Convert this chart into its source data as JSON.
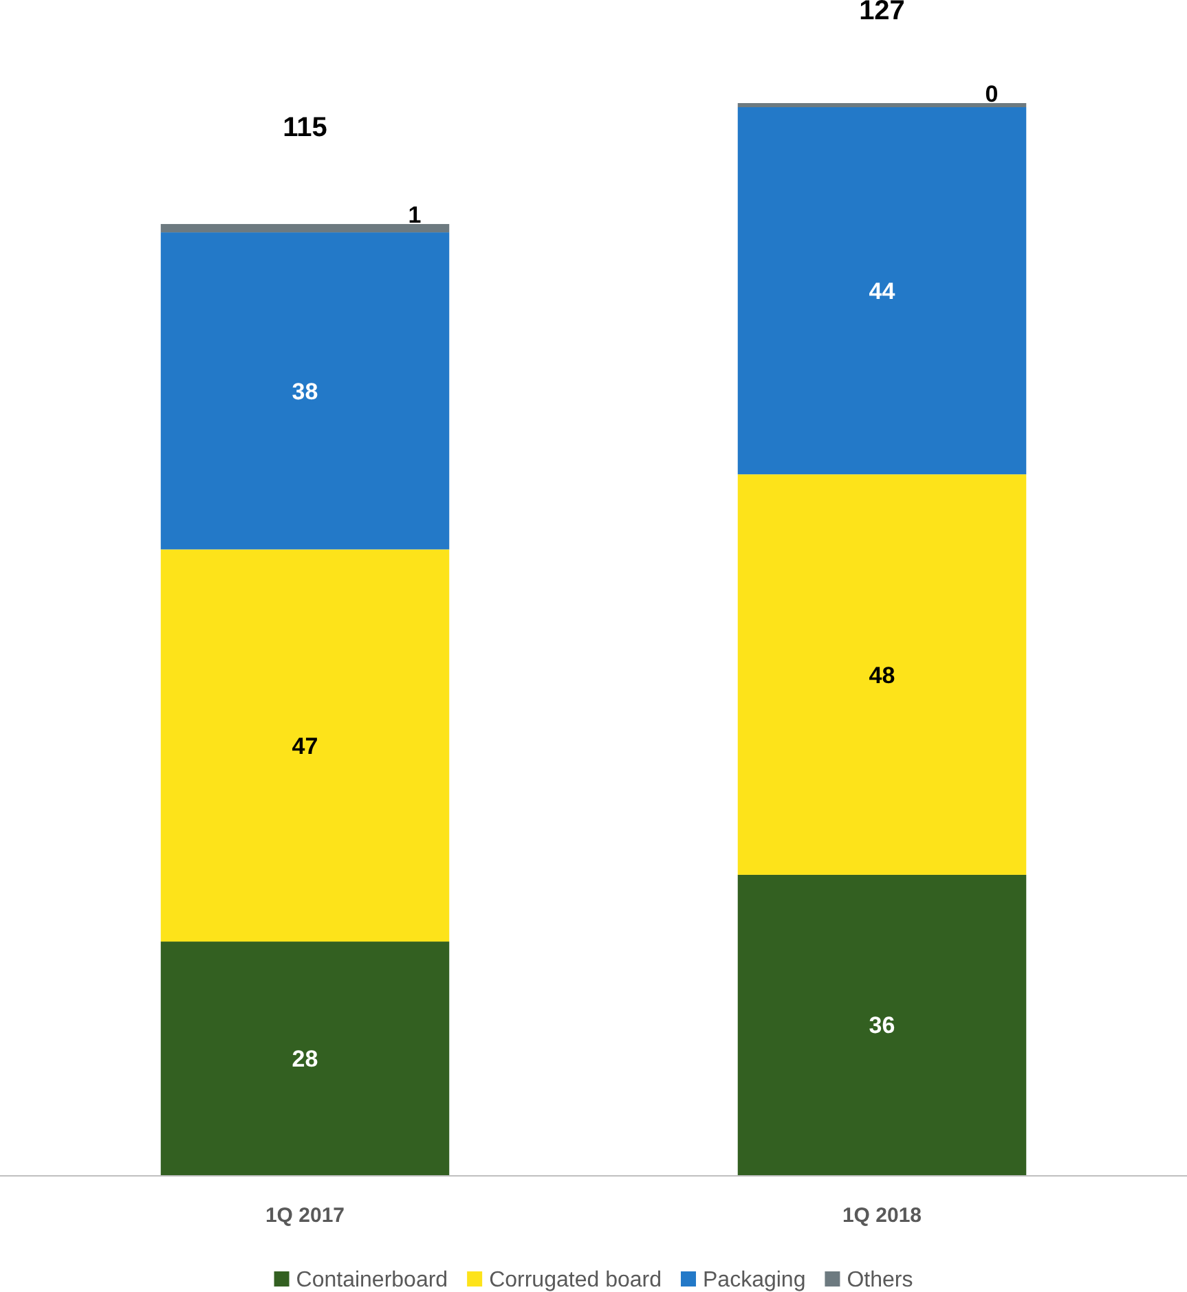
{
  "chart_data": {
    "type": "bar",
    "stacked": true,
    "categories": [
      "1Q 2017",
      "1Q 2018"
    ],
    "series": [
      {
        "name": "Containerboard",
        "color": "#336021",
        "values": [
          28,
          36
        ]
      },
      {
        "name": "Corrugated board",
        "color": "#fde31a",
        "values": [
          47,
          48
        ]
      },
      {
        "name": "Packaging",
        "color": "#2379c8",
        "values": [
          38,
          44
        ]
      },
      {
        "name": "Others",
        "color": "#6d7a80",
        "values": [
          1,
          0
        ]
      }
    ],
    "data_labels": true,
    "totals": [
      "115",
      "127"
    ],
    "legend": "bottom"
  }
}
